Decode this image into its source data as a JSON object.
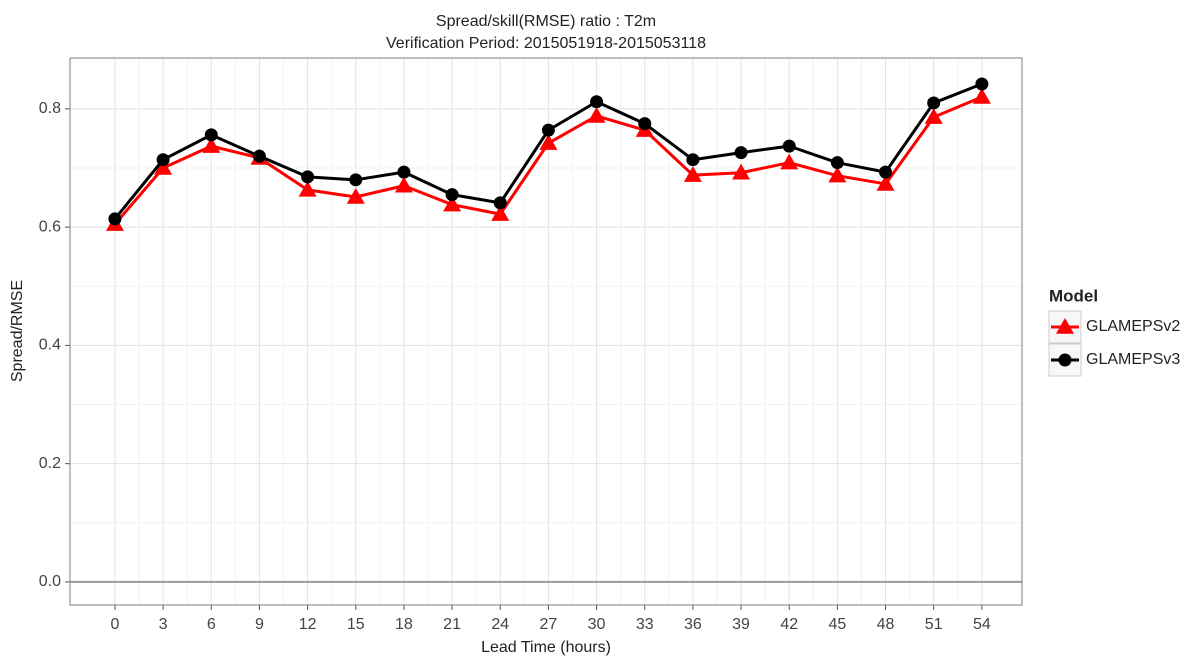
{
  "chart_data": {
    "type": "line",
    "title": "Spread/skill(RMSE) ratio : T2m",
    "subtitle": "Verification Period: 2015051918-2015053118",
    "x_label": "Lead Time (hours)",
    "y_label": "Spread/RMSE",
    "legend_title": "Model",
    "legend_position": "right",
    "grid": true,
    "reference_line": 0,
    "x": [
      0,
      3,
      6,
      9,
      12,
      15,
      18,
      21,
      24,
      27,
      30,
      33,
      36,
      39,
      42,
      45,
      48,
      51,
      54
    ],
    "xlim": [
      -2.8,
      56.5
    ],
    "xticks": [
      0,
      3,
      6,
      9,
      12,
      15,
      18,
      21,
      24,
      27,
      30,
      33,
      36,
      39,
      42,
      45,
      48,
      51,
      54
    ],
    "ylim": [
      -0.039,
      0.886
    ],
    "yticks": [
      {
        "value": 0,
        "label": "0.0"
      },
      0.2,
      0.4,
      0.6,
      0.8
    ],
    "series": [
      {
        "name": "GLAMEPSv2",
        "color": "#ff0000",
        "marker": "triangle",
        "values": [
          0.605,
          0.7,
          0.737,
          0.717,
          0.663,
          0.651,
          0.67,
          0.638,
          0.622,
          0.742,
          0.788,
          0.764,
          0.688,
          0.692,
          0.709,
          0.687,
          0.673,
          0.786,
          0.82
        ]
      },
      {
        "name": "GLAMEPSv3",
        "color": "#000000",
        "marker": "circle",
        "values": [
          0.614,
          0.714,
          0.756,
          0.72,
          0.685,
          0.68,
          0.693,
          0.655,
          0.641,
          0.764,
          0.812,
          0.775,
          0.714,
          0.726,
          0.737,
          0.709,
          0.693,
          0.81,
          0.842
        ]
      }
    ]
  }
}
